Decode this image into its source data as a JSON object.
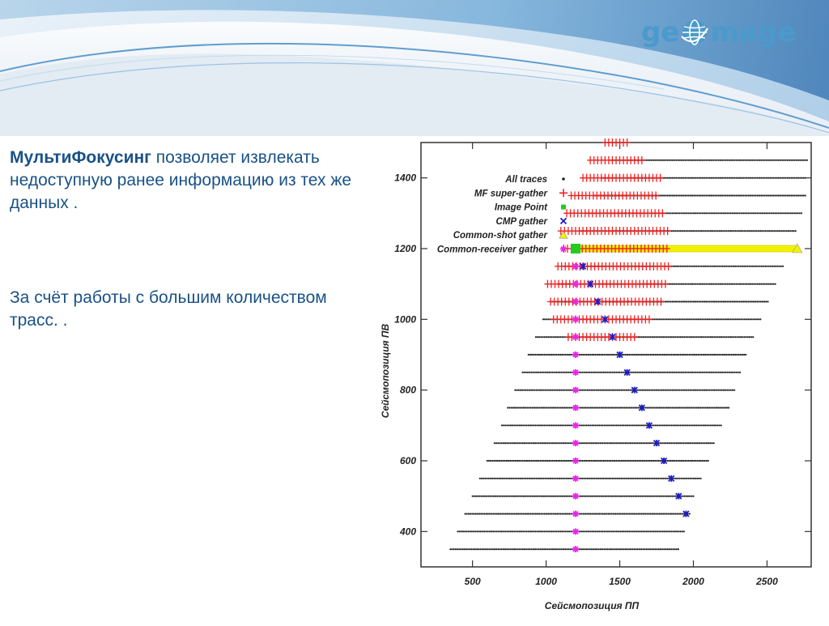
{
  "logo": {
    "text_left": "ge",
    "text_right": "mage"
  },
  "text": {
    "p1_bold": "МультиФокусинг",
    "p1_rest": " позволяет извлекать недоступную ранее информацию из тех же данных .",
    "p2": "За счёт работы с большим количеством трасс. ."
  },
  "colors": {
    "brand": "#4a9acb",
    "text": "#1a5286",
    "all_traces": "#222222",
    "mf_super_gather": "#ee2222",
    "image_point": "#22cc22",
    "cmp_gather": "#1a1acc",
    "common_shot": "#f2f200",
    "common_receiver": "#ee22ee"
  },
  "chart_data": {
    "type": "scatter",
    "xlabel": "Сейсмопозиция ПП",
    "ylabel": "Сейсмопозиция ПВ",
    "xlim": [
      150,
      2800
    ],
    "ylim": [
      300,
      1500
    ],
    "xticks": [
      500,
      1000,
      1500,
      2000,
      2500
    ],
    "yticks": [
      400,
      600,
      800,
      1000,
      1200,
      1400
    ],
    "legend_position": "top-left",
    "grid": false,
    "series": [
      {
        "name": "All traces",
        "marker": "dot",
        "description_rows": "each row is a shot (y) with continuous receivers from x_start to x_end",
        "rows": [
          {
            "y": 350,
            "x": [
              350,
              1900
            ]
          },
          {
            "y": 400,
            "x": [
              400,
              1940
            ]
          },
          {
            "y": 450,
            "x": [
              450,
              1980
            ]
          },
          {
            "y": 500,
            "x": [
              500,
              2010
            ]
          },
          {
            "y": 550,
            "x": [
              550,
              2050
            ]
          },
          {
            "y": 600,
            "x": [
              600,
              2100
            ]
          },
          {
            "y": 650,
            "x": [
              650,
              2140
            ]
          },
          {
            "y": 700,
            "x": [
              700,
              2190
            ]
          },
          {
            "y": 750,
            "x": [
              740,
              2240
            ]
          },
          {
            "y": 800,
            "x": [
              790,
              2280
            ]
          },
          {
            "y": 850,
            "x": [
              840,
              2320
            ]
          },
          {
            "y": 900,
            "x": [
              880,
              2360
            ]
          },
          {
            "y": 950,
            "x": [
              930,
              2410
            ]
          },
          {
            "y": 1000,
            "x": [
              980,
              2460
            ]
          },
          {
            "y": 1050,
            "x": [
              1030,
              2510
            ]
          },
          {
            "y": 1100,
            "x": [
              1080,
              2560
            ]
          },
          {
            "y": 1150,
            "x": [
              1120,
              2610
            ]
          },
          {
            "y": 1200,
            "x": [
              1180,
              2660
            ]
          },
          {
            "y": 1250,
            "x": [
              1230,
              2700
            ]
          },
          {
            "y": 1300,
            "x": [
              1270,
              2740
            ]
          },
          {
            "y": 1350,
            "x": [
              1320,
              2760
            ]
          },
          {
            "y": 1400,
            "x": [
              1380,
              2770
            ]
          },
          {
            "y": 1450,
            "x": [
              1440,
              2780
            ]
          }
        ]
      },
      {
        "name": "MF super-gather",
        "marker": "plus",
        "rows": [
          {
            "y": 950,
            "x": [
              1150,
              1620
            ]
          },
          {
            "y": 1000,
            "x": [
              1050,
              1720
            ]
          },
          {
            "y": 1050,
            "x": [
              1030,
              1780
            ]
          },
          {
            "y": 1100,
            "x": [
              1010,
              1810
            ]
          },
          {
            "y": 1150,
            "x": [
              1080,
              1830
            ]
          },
          {
            "y": 1200,
            "x": [
              1120,
              1830
            ]
          },
          {
            "y": 1250,
            "x": [
              1100,
              1830
            ]
          },
          {
            "y": 1300,
            "x": [
              1140,
              1790
            ]
          },
          {
            "y": 1350,
            "x": [
              1170,
              1750
            ]
          },
          {
            "y": 1400,
            "x": [
              1250,
              1780
            ]
          },
          {
            "y": 1450,
            "x": [
              1300,
              1650
            ]
          },
          {
            "y": 1500,
            "x": [
              1400,
              1570
            ]
          }
        ]
      },
      {
        "name": "Image Point",
        "marker": "square",
        "points": [
          {
            "x": 1200,
            "y": 1200
          }
        ]
      },
      {
        "name": "CMP gather",
        "marker": "x",
        "points": [
          {
            "x": 1950,
            "y": 450
          },
          {
            "x": 1900,
            "y": 500
          },
          {
            "x": 1850,
            "y": 550
          },
          {
            "x": 1800,
            "y": 600
          },
          {
            "x": 1750,
            "y": 650
          },
          {
            "x": 1700,
            "y": 700
          },
          {
            "x": 1650,
            "y": 750
          },
          {
            "x": 1600,
            "y": 800
          },
          {
            "x": 1550,
            "y": 850
          },
          {
            "x": 1500,
            "y": 900
          },
          {
            "x": 1450,
            "y": 950
          },
          {
            "x": 1400,
            "y": 1000
          },
          {
            "x": 1350,
            "y": 1050
          },
          {
            "x": 1300,
            "y": 1100
          },
          {
            "x": 1250,
            "y": 1150
          }
        ]
      },
      {
        "name": "Common-shot gather",
        "marker": "triangle",
        "rows": [
          {
            "y": 1200,
            "x": [
              1200,
              2700
            ]
          }
        ]
      },
      {
        "name": "Common-receiver gather",
        "marker": "star",
        "points": [
          {
            "x": 1200,
            "y": 350
          },
          {
            "x": 1200,
            "y": 400
          },
          {
            "x": 1200,
            "y": 450
          },
          {
            "x": 1200,
            "y": 500
          },
          {
            "x": 1200,
            "y": 550
          },
          {
            "x": 1200,
            "y": 600
          },
          {
            "x": 1200,
            "y": 650
          },
          {
            "x": 1200,
            "y": 700
          },
          {
            "x": 1200,
            "y": 750
          },
          {
            "x": 1200,
            "y": 800
          },
          {
            "x": 1200,
            "y": 850
          },
          {
            "x": 1200,
            "y": 900
          },
          {
            "x": 1200,
            "y": 950
          },
          {
            "x": 1200,
            "y": 1000
          },
          {
            "x": 1200,
            "y": 1050
          },
          {
            "x": 1200,
            "y": 1100
          },
          {
            "x": 1200,
            "y": 1150
          },
          {
            "x": 1200,
            "y": 1200
          }
        ]
      }
    ]
  }
}
